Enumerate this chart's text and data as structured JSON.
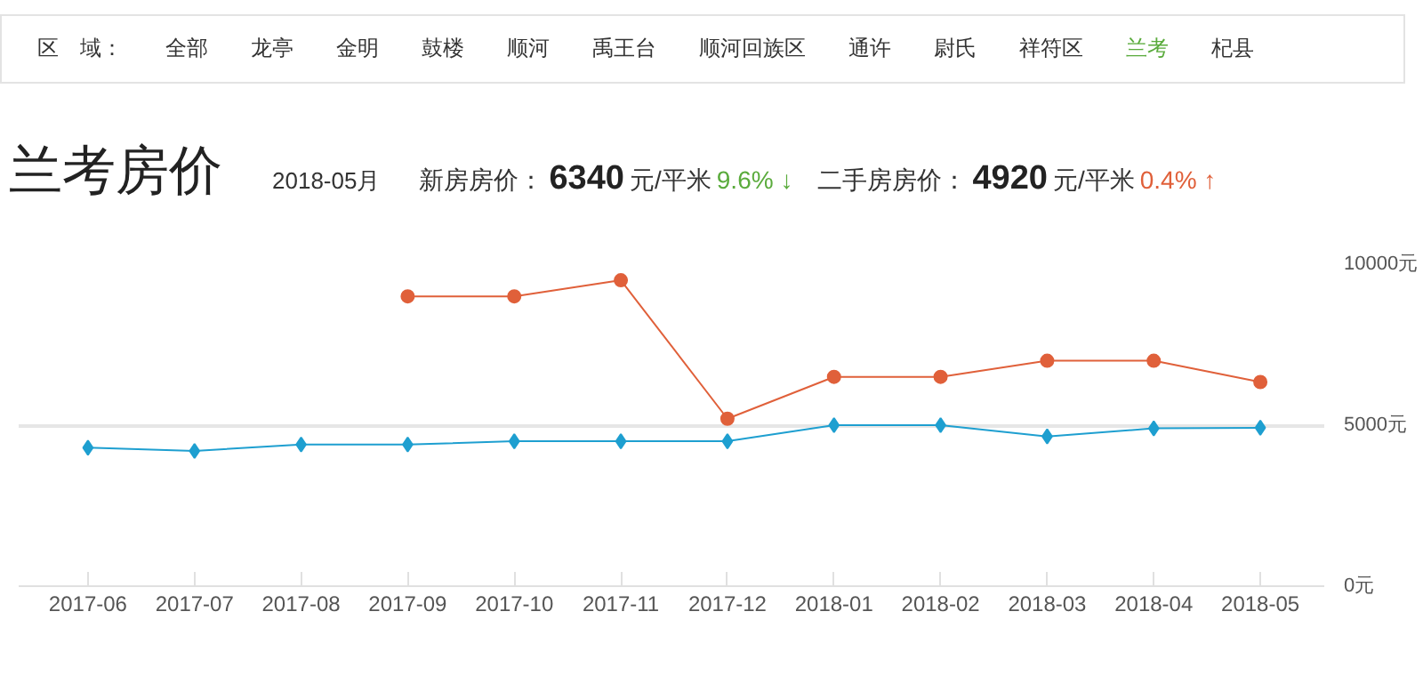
{
  "chart_data": {
    "type": "line",
    "title": "兰考房价",
    "subtitle": "2018-05月",
    "annotations": [
      "区　域：",
      "全部",
      "龙亭",
      "金明",
      "鼓楼",
      "顺河",
      "禹王台",
      "顺河回族区",
      "通许",
      "尉氏",
      "祥符区",
      "兰考",
      "杞县",
      "新房房价：",
      "6340",
      "元/平米",
      "9.6% ↓",
      "二手房房价：",
      "4920",
      "元/平米",
      "0.4% ↑"
    ],
    "categories": [
      "2017-06",
      "2017-07",
      "2017-08",
      "2017-09",
      "2017-10",
      "2017-11",
      "2017-12",
      "2018-01",
      "2018-02",
      "2018-03",
      "2018-04",
      "2018-05"
    ],
    "series": [
      {
        "color": "#e0603a",
        "marker": "circle",
        "values": [
          null,
          null,
          null,
          9000,
          9000,
          9500,
          5200,
          6500,
          6500,
          7000,
          7000,
          6340
        ]
      },
      {
        "color": "#1e9fd0",
        "marker": "diamond",
        "values": [
          4300,
          4200,
          4400,
          4400,
          4500,
          4500,
          4500,
          5000,
          5000,
          4650,
          4900,
          4920
        ]
      }
    ],
    "ylim": [
      0,
      10000
    ],
    "yticks": [
      {
        "value": 0,
        "label": "0元"
      },
      {
        "value": 5000,
        "label": "5000元"
      },
      {
        "value": 10000,
        "label": "10000元"
      }
    ],
    "grid": "y"
  }
}
